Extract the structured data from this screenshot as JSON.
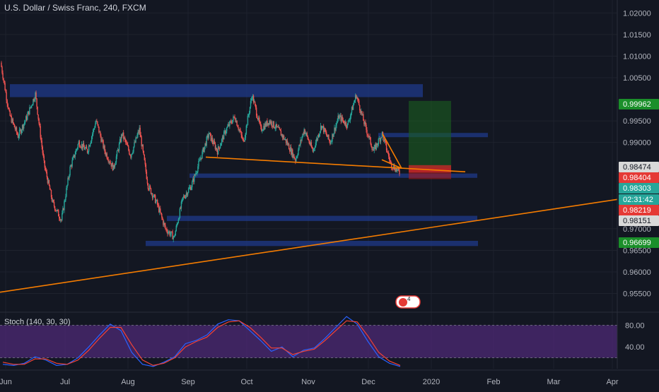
{
  "header": {
    "title": "U.S. Dollar / Swiss Franc, 240, FXCM"
  },
  "colors": {
    "background": "#131722",
    "candle_up": "#26a69a",
    "candle_down": "#ef5350",
    "zone": "#1f3a8a",
    "trend_line": "#f57c00",
    "profit_zone": "#1b5e20",
    "loss_zone": "#b71c1c",
    "stoch_k": "#2962ff",
    "stoch_d": "#f44336",
    "stoch_band": "#4a2870"
  },
  "chart_data": {
    "type": "candlestick",
    "symbol": "USDCHF",
    "timeframe": "240",
    "x_tick_labels": [
      "Jun",
      "Jul",
      "Aug",
      "Sep",
      "Oct",
      "Nov",
      "Dec",
      "2020",
      "Feb",
      "Mar",
      "Apr"
    ],
    "y_tick_labels": [
      "1.02000",
      "1.01500",
      "1.01000",
      "1.00500",
      "0.99500",
      "0.99000",
      "0.97000",
      "0.96500",
      "0.96000",
      "0.95500"
    ],
    "ylim": [
      0.951,
      1.023
    ],
    "price_path": [
      [
        "Jun",
        1.0085
      ],
      [
        "Jun",
        0.9965
      ],
      [
        "Jun",
        0.9915
      ],
      [
        "Jun",
        0.9958
      ],
      [
        "Jun",
        1.0012
      ],
      [
        "Jul",
        0.985
      ],
      [
        "Jul",
        0.976
      ],
      [
        "Jul",
        0.972
      ],
      [
        "Jul",
        0.984
      ],
      [
        "Jul",
        0.99
      ],
      [
        "Jul",
        0.988
      ],
      [
        "Jul",
        0.995
      ],
      [
        "Jul",
        0.988
      ],
      [
        "Jul",
        0.984
      ],
      [
        "Jul",
        0.992
      ],
      [
        "Aug",
        0.987
      ],
      [
        "Aug",
        0.993
      ],
      [
        "Aug",
        0.98
      ],
      [
        "Aug",
        0.976
      ],
      [
        "Aug",
        0.97
      ],
      [
        "Aug",
        0.968
      ],
      [
        "Aug",
        0.977
      ],
      [
        "Aug",
        0.98
      ],
      [
        "Sep",
        0.986
      ],
      [
        "Sep",
        0.992
      ],
      [
        "Sep",
        0.988
      ],
      [
        "Sep",
        0.993
      ],
      [
        "Sep",
        0.996
      ],
      [
        "Sep",
        0.99
      ],
      [
        "Oct",
        1.001
      ],
      [
        "Oct",
        0.993
      ],
      [
        "Oct",
        0.995
      ],
      [
        "Oct",
        0.993
      ],
      [
        "Oct",
        0.99
      ],
      [
        "Nov",
        0.986
      ],
      [
        "Nov",
        0.993
      ],
      [
        "Nov",
        0.988
      ],
      [
        "Nov",
        0.994
      ],
      [
        "Nov",
        0.99
      ],
      [
        "Nov",
        0.996
      ],
      [
        "Nov",
        0.994
      ],
      [
        "Dec",
        1.001
      ],
      [
        "Dec",
        0.994
      ],
      [
        "Dec",
        0.988
      ],
      [
        "Dec",
        0.992
      ],
      [
        "Dec",
        0.985
      ],
      [
        "Dec",
        0.983
      ]
    ],
    "price_labels": [
      {
        "value": "0.99962",
        "color": "#1b8f2a",
        "text_color": "#ffffff"
      },
      {
        "value": "0.98474",
        "color": "#d9d9d9",
        "text_color": "#131722"
      },
      {
        "value": "0.98404",
        "color": "#e53935",
        "text_color": "#ffffff"
      },
      {
        "value": "0.98303",
        "color": "#26a69a",
        "text_color": "#ffffff"
      },
      {
        "value": "02:31:42",
        "color": "#26a69a",
        "text_color": "#ffffff"
      },
      {
        "value": "0.98219",
        "color": "#e53935",
        "text_color": "#ffffff"
      },
      {
        "value": "0.98151",
        "color": "#d9d9d9",
        "text_color": "#131722"
      },
      {
        "value": "0.96699",
        "color": "#1b8f2a",
        "text_color": "#ffffff"
      }
    ],
    "drawings": {
      "zones": [
        {
          "from": "Jun",
          "to": "Dec",
          "top": 1.0035,
          "bottom": 1.0005
        },
        {
          "from": "Dec",
          "to": "Jan",
          "top": 0.9922,
          "bottom": 0.9915
        },
        {
          "from": "Sep",
          "to": "Jan",
          "top": 0.9828,
          "bottom": 0.9818
        },
        {
          "from": "Aug",
          "to": "Jan",
          "top": 0.973,
          "bottom": 0.9718
        },
        {
          "from": "Aug",
          "to": "Jan",
          "top": 0.9672,
          "bottom": 0.966
        }
      ],
      "trend_lines": [
        {
          "from": [
            "Sep",
            0.9866
          ],
          "to": [
            "Jan",
            0.9832
          ]
        },
        {
          "from": [
            "Jun",
            0.9553
          ],
          "to": [
            "Apr",
            0.9768
          ]
        },
        {
          "from": [
            "Dec",
            0.992
          ],
          "to": [
            "Dec",
            0.984
          ]
        }
      ],
      "position": {
        "type": "long",
        "entry": 0.98404,
        "target": 0.99962,
        "stop": 0.98151
      }
    },
    "event_badge": "4",
    "indicator": {
      "name": "Stoch (140, 30, 30)",
      "y_tick_labels": [
        "80.00",
        "40.00"
      ],
      "ylim": [
        0,
        100
      ],
      "band": [
        20,
        80
      ],
      "k": [
        8,
        6,
        10,
        22,
        16,
        6,
        8,
        20,
        40,
        62,
        82,
        70,
        30,
        8,
        4,
        12,
        22,
        46,
        52,
        62,
        82,
        90,
        88,
        70,
        52,
        32,
        40,
        22,
        34,
        38,
        56,
        76,
        96,
        82,
        50,
        22,
        10,
        4
      ],
      "d": [
        12,
        8,
        8,
        18,
        18,
        10,
        8,
        16,
        34,
        56,
        76,
        76,
        44,
        16,
        6,
        10,
        20,
        40,
        50,
        58,
        76,
        86,
        88,
        76,
        58,
        38,
        38,
        26,
        32,
        36,
        52,
        70,
        88,
        86,
        60,
        30,
        14,
        6
      ]
    }
  }
}
